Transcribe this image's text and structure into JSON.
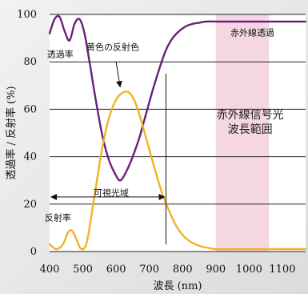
{
  "chart_data": {
    "type": "line",
    "title": "",
    "xlabel": "波長 (nm)",
    "ylabel": "透過率 / 反射率 (%)",
    "xlim": [
      400,
      1170
    ],
    "ylim": [
      0,
      100
    ],
    "xticks": [
      400,
      500,
      600,
      700,
      800,
      900,
      1000,
      1100
    ],
    "yticks": [
      0,
      20,
      40,
      60,
      80,
      100
    ],
    "grid": "horizontal",
    "series": [
      {
        "name": "透過率",
        "color": "#6b1f7a",
        "x": [
          400,
          415,
          430,
          445,
          460,
          475,
          490,
          505,
          520,
          540,
          560,
          580,
          600,
          610,
          620,
          635,
          650,
          670,
          690,
          710,
          730,
          750,
          770,
          790,
          810,
          830,
          850,
          870,
          900,
          930,
          960,
          1000,
          1050,
          1100,
          1170
        ],
        "y": [
          92,
          98,
          99,
          93,
          89,
          96,
          98,
          92,
          80,
          63,
          48,
          38,
          32,
          30,
          31,
          35,
          40,
          48,
          58,
          68,
          77,
          85,
          90,
          93,
          95,
          96,
          96.5,
          97,
          97,
          97,
          97,
          97,
          97,
          97,
          97
        ]
      },
      {
        "name": "反射率",
        "color": "#f0b423",
        "x": [
          400,
          420,
          440,
          455,
          465,
          475,
          490,
          500,
          510,
          520,
          540,
          560,
          580,
          600,
          620,
          640,
          660,
          680,
          700,
          720,
          740,
          760,
          780,
          800,
          820,
          840,
          860,
          880,
          900,
          950,
          1000,
          1100,
          1170
        ],
        "y": [
          3,
          1,
          3,
          8,
          9,
          7,
          2,
          1,
          3,
          10,
          28,
          45,
          57,
          64,
          67,
          67,
          62,
          53,
          43,
          33,
          24,
          17,
          11,
          7,
          4.5,
          3,
          2,
          1.5,
          1,
          1,
          1,
          1,
          1
        ]
      }
    ],
    "annotations": [
      {
        "text": "透過率",
        "x": 432,
        "y": 82
      },
      {
        "text": "黄色の反射色",
        "x": 590,
        "y": 85
      },
      {
        "text": "赤外線透過",
        "x": 1010,
        "y": 91
      },
      {
        "text": "可視光域",
        "x": 585,
        "y": 23.5
      },
      {
        "text": "反射率",
        "x": 425,
        "y": 13
      },
      {
        "text": "赤外線信号光",
        "x": 1003,
        "y": 56
      },
      {
        "text": "波長範囲",
        "x": 1003,
        "y": 50
      }
    ],
    "shaded_region": {
      "x_start": 900,
      "x_end": 1060,
      "color": "#f4d7e3"
    },
    "visible_range_arrow": {
      "from": 400,
      "to": 750,
      "y": 23
    },
    "marker_line_x": 750
  }
}
